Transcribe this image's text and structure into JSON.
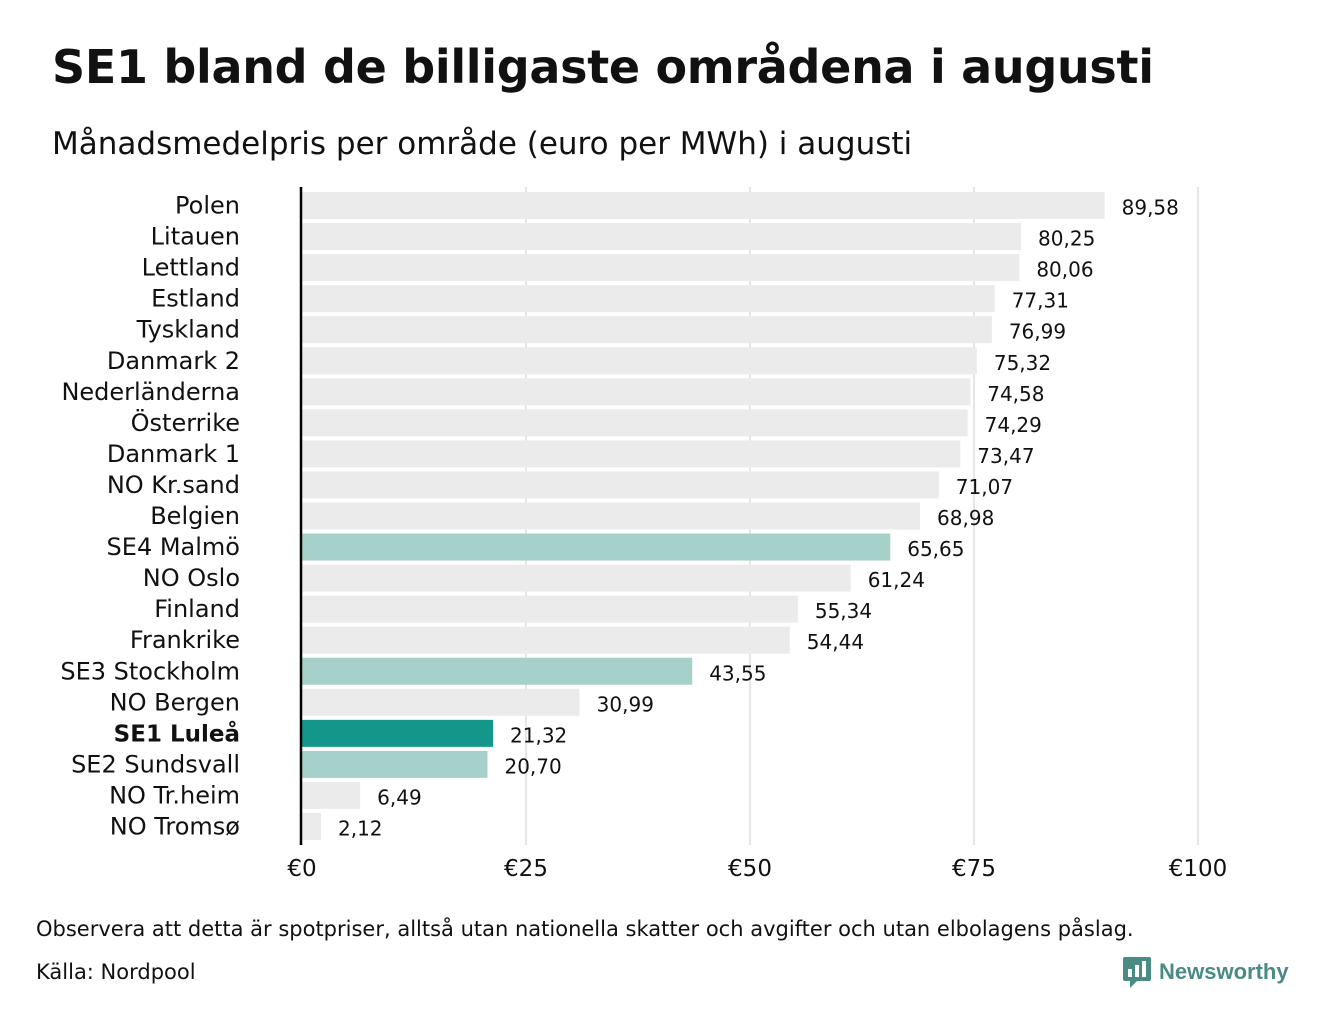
{
  "title": "SE1 bland de billigaste områdena i augusti",
  "subtitle": "Månadsmedelpris per område (euro per MWh) i augusti",
  "note": "Observera att detta är spotpriser, alltså utan nationella skatter och avgifter och utan elbolagens påslag.",
  "source": "Källa: Nordpool",
  "brand": "Newsworthy",
  "colors": {
    "default": "#ebebeb",
    "swedish": "#a6d0ca",
    "highlight": "#14968a",
    "brand": "#4a8c84"
  },
  "chart_data": {
    "type": "bar",
    "orientation": "horizontal",
    "categories": [
      "Polen",
      "Litauen",
      "Lettland",
      "Estland",
      "Tyskland",
      "Danmark  2",
      "Nederländerna",
      "Österrike",
      "Danmark  1",
      "NO Kr.sand",
      "Belgien",
      "SE4  Malmö",
      "NO Oslo",
      "Finland",
      "Frankrike",
      "SE3  Stockholm",
      "NO Bergen",
      "SE1 Luleå",
      "SE2  Sundsvall",
      "NO Tr.heim",
      "NO Tromsø"
    ],
    "values": [
      89.58,
      80.25,
      80.06,
      77.31,
      76.99,
      75.32,
      74.58,
      74.29,
      73.47,
      71.07,
      68.98,
      65.65,
      61.24,
      55.34,
      54.44,
      43.55,
      30.99,
      21.32,
      20.7,
      6.49,
      2.12
    ],
    "value_labels": [
      "89,58",
      "80,25",
      "80,06",
      "77,31",
      "76,99",
      "75,32",
      "74,58",
      "74,29",
      "73,47",
      "71,07",
      "68,98",
      "65,65",
      "61,24",
      "55,34",
      "54,44",
      "43,55",
      "30,99",
      "21,32",
      "20,70",
      "6,49",
      "2,12"
    ],
    "groups": [
      "default",
      "default",
      "default",
      "default",
      "default",
      "default",
      "default",
      "default",
      "default",
      "default",
      "default",
      "swedish",
      "default",
      "default",
      "default",
      "swedish",
      "default",
      "highlight",
      "swedish",
      "default",
      "default"
    ],
    "xlim": [
      0,
      100
    ],
    "xticks": [
      0,
      25,
      50,
      75,
      100
    ],
    "xtick_labels": [
      "€0",
      "€25",
      "€50",
      "€75",
      "€100"
    ],
    "grid": "vertical"
  }
}
